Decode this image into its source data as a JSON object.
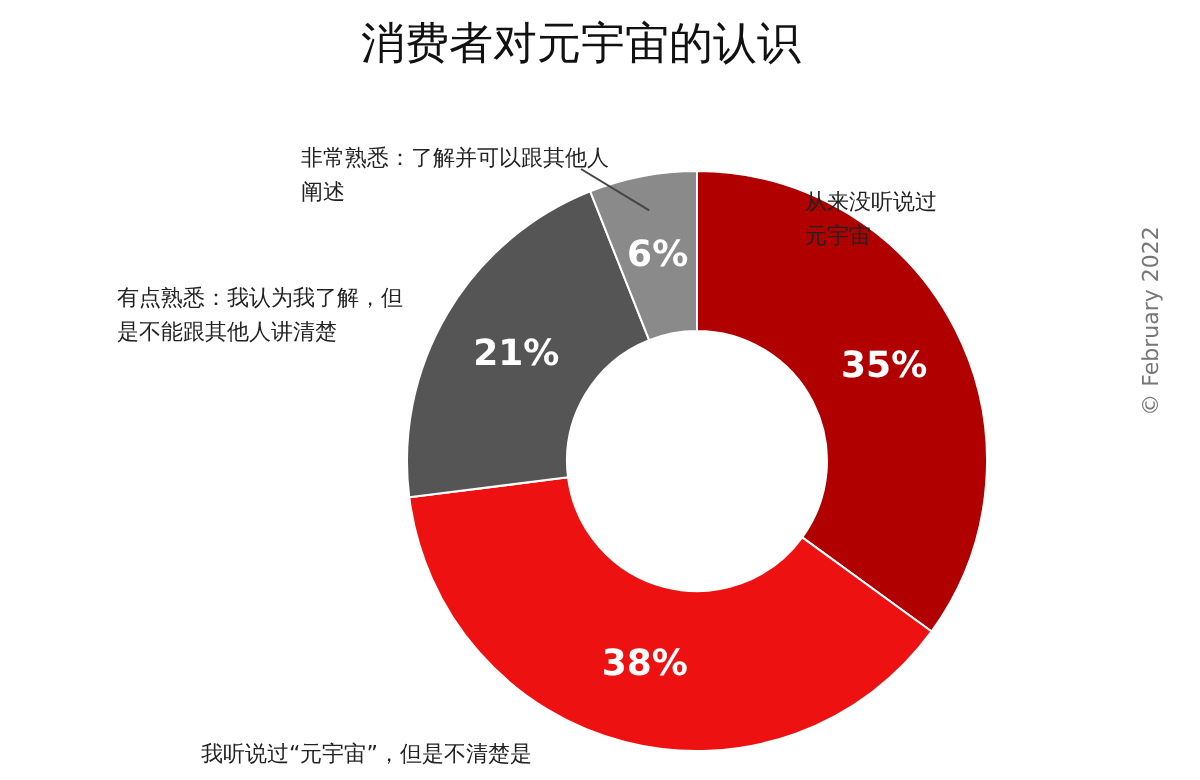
{
  "chart_data": {
    "type": "donut",
    "title": "消费者对元宇宙的认识",
    "categories": [
      "从来没听说过元宇宙",
      "我听说过“元宇宙”，但是不清楚是",
      "有点熟悉：我认为我了解，但是不能跟其他人讲清楚",
      "非常熟悉：了解并可以跟其他人阐述"
    ],
    "values": [
      35,
      38,
      21,
      6
    ],
    "colors": [
      "#b00000",
      "#ee1111",
      "#555555",
      "#8a8a8a"
    ],
    "value_labels": [
      "35%",
      "38%",
      "21%",
      "6%"
    ],
    "annotations": [
      "© February 2022"
    ]
  }
}
